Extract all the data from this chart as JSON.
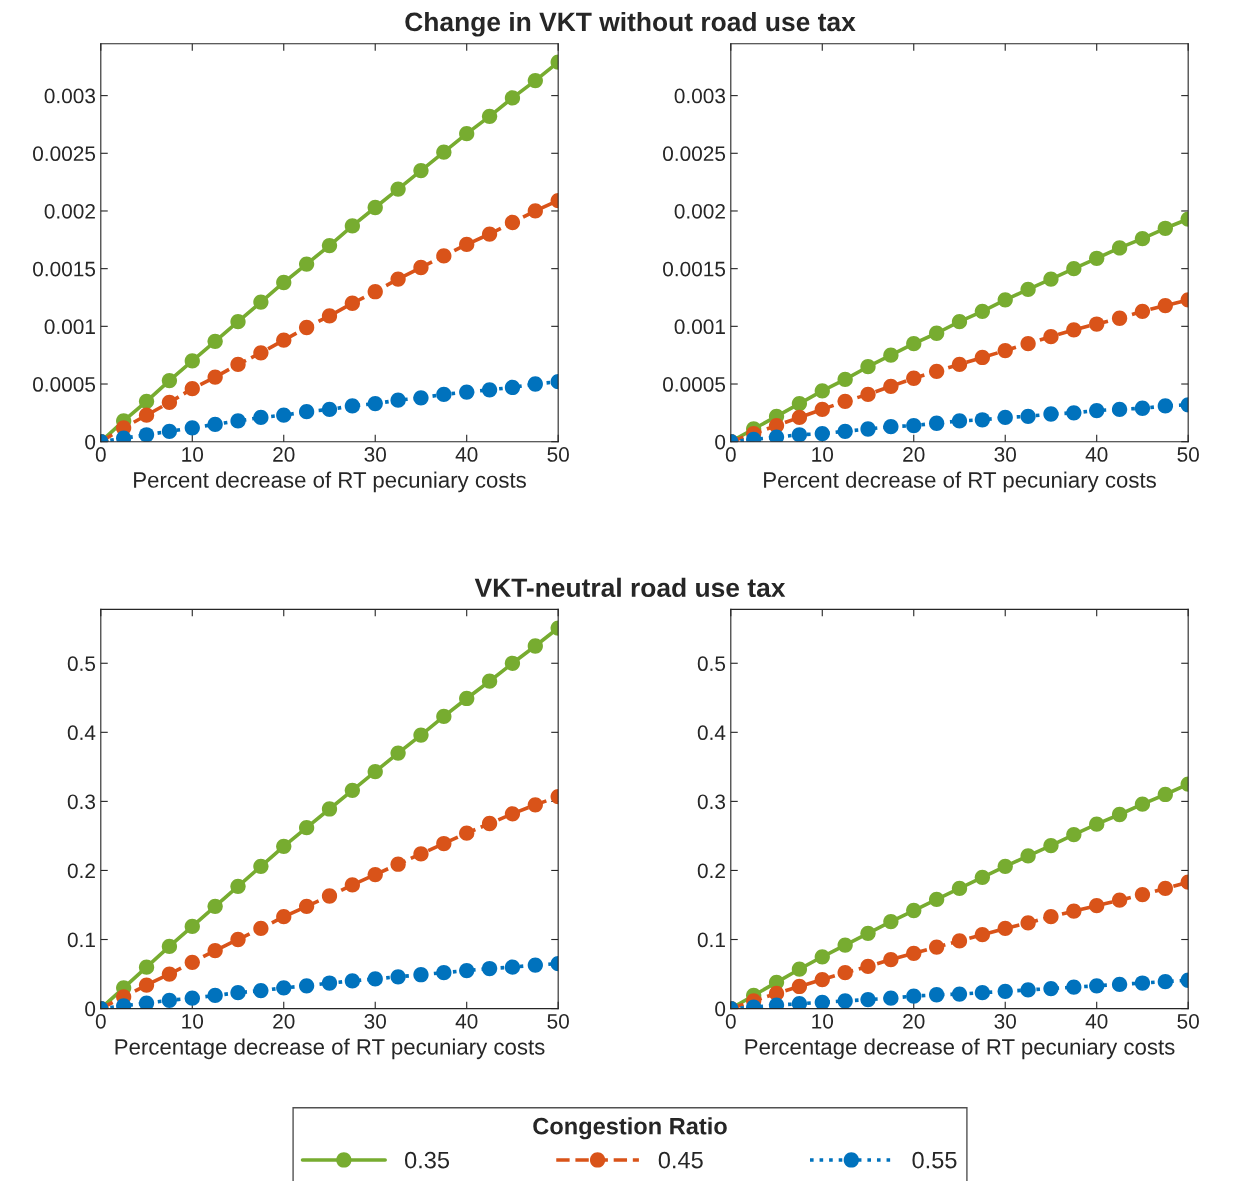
{
  "chart_data": [
    {
      "type": "line",
      "title": "Change in VKT without road use tax",
      "xlabel": "Percent decrease of RT pecuniary costs",
      "x": [
        0,
        2.5,
        5,
        7.5,
        10,
        12.5,
        15,
        17.5,
        20,
        22.5,
        25,
        27.5,
        30,
        32.5,
        35,
        37.5,
        40,
        42.5,
        45,
        47.5,
        50
      ],
      "xlim": [
        0,
        50
      ],
      "xticks": [
        0,
        10,
        20,
        30,
        40,
        50
      ],
      "ylim": [
        0,
        0.00345
      ],
      "yticks": [
        0,
        0.0005,
        0.001,
        0.0015,
        0.002,
        0.0025,
        0.003
      ],
      "grid": false,
      "marker": "circle",
      "legend": "bottom",
      "legend_title": "Congestion Ratio",
      "series": [
        {
          "name": "0.35",
          "color": "#77ac30",
          "line_style": "solid",
          "values": [
            0,
            0.00018,
            0.00035,
            0.00053,
            0.0007,
            0.00087,
            0.00104,
            0.00121,
            0.00138,
            0.00154,
            0.0017,
            0.00187,
            0.00203,
            0.00219,
            0.00235,
            0.00251,
            0.00267,
            0.00282,
            0.00298,
            0.00313,
            0.00329
          ]
        },
        {
          "name": "0.45",
          "color": "#d95319",
          "line_style": "dashed",
          "values": [
            0,
            0.00012,
            0.00023,
            0.00034,
            0.00046,
            0.00056,
            0.00067,
            0.00077,
            0.00088,
            0.00099,
            0.00109,
            0.0012,
            0.0013,
            0.00141,
            0.00151,
            0.00161,
            0.00171,
            0.0018,
            0.0019,
            0.002,
            0.00209
          ]
        },
        {
          "name": "0.55",
          "color": "#0072bd",
          "line_style": "dotted",
          "values": [
            0,
            3e-05,
            6e-05,
            9e-05,
            0.00012,
            0.00015,
            0.00018,
            0.00021,
            0.00023,
            0.00026,
            0.00028,
            0.00031,
            0.00033,
            0.00036,
            0.00038,
            0.00041,
            0.00043,
            0.00045,
            0.00047,
            0.0005,
            0.00052
          ]
        }
      ]
    },
    {
      "type": "line",
      "xlabel": "Percent decrease of RT pecuniary costs",
      "x": [
        0,
        2.5,
        5,
        7.5,
        10,
        12.5,
        15,
        17.5,
        20,
        22.5,
        25,
        27.5,
        30,
        32.5,
        35,
        37.5,
        40,
        42.5,
        45,
        47.5,
        50
      ],
      "xlim": [
        0,
        50
      ],
      "xticks": [
        0,
        10,
        20,
        30,
        40,
        50
      ],
      "ylim": [
        0,
        0.00345
      ],
      "yticks": [
        0,
        0.0005,
        0.001,
        0.0015,
        0.002,
        0.0025,
        0.003
      ],
      "grid": false,
      "marker": "circle",
      "series": [
        {
          "name": "0.35",
          "color": "#77ac30",
          "line_style": "solid",
          "values": [
            0,
            0.00011,
            0.00022,
            0.00033,
            0.00044,
            0.00054,
            0.00065,
            0.00075,
            0.00085,
            0.00094,
            0.00104,
            0.00113,
            0.00123,
            0.00132,
            0.00141,
            0.0015,
            0.00159,
            0.00168,
            0.00176,
            0.00185,
            0.00193
          ]
        },
        {
          "name": "0.45",
          "color": "#d95319",
          "line_style": "dashed",
          "values": [
            0,
            7e-05,
            0.00014,
            0.00021,
            0.00028,
            0.00035,
            0.00041,
            0.00048,
            0.00055,
            0.00061,
            0.00067,
            0.00073,
            0.00079,
            0.00085,
            0.00091,
            0.00097,
            0.00102,
            0.00107,
            0.00113,
            0.00118,
            0.00123
          ]
        },
        {
          "name": "0.55",
          "color": "#0072bd",
          "line_style": "dotted",
          "values": [
            0,
            2e-05,
            4e-05,
            6e-05,
            7e-05,
            9e-05,
            0.00011,
            0.00013,
            0.00014,
            0.00016,
            0.00018,
            0.00019,
            0.00021,
            0.00022,
            0.00024,
            0.00025,
            0.00027,
            0.00028,
            0.00029,
            0.00031,
            0.00032
          ]
        }
      ]
    },
    {
      "type": "line",
      "title": "VKT-neutral road use tax",
      "xlabel": "Percentage decrease of RT pecuniary costs",
      "x": [
        0,
        2.5,
        5,
        7.5,
        10,
        12.5,
        15,
        17.5,
        20,
        22.5,
        25,
        27.5,
        30,
        32.5,
        35,
        37.5,
        40,
        42.5,
        45,
        47.5,
        50
      ],
      "xlim": [
        0,
        50
      ],
      "xticks": [
        0,
        10,
        20,
        30,
        40,
        50
      ],
      "ylim": [
        0,
        0.578
      ],
      "yticks": [
        0,
        0.1,
        0.2,
        0.3,
        0.4,
        0.5
      ],
      "grid": false,
      "marker": "circle",
      "series": [
        {
          "name": "0.35",
          "color": "#77ac30",
          "line_style": "solid",
          "values": [
            0,
            0.03,
            0.06,
            0.09,
            0.119,
            0.148,
            0.177,
            0.206,
            0.235,
            0.262,
            0.289,
            0.316,
            0.343,
            0.37,
            0.396,
            0.423,
            0.449,
            0.474,
            0.5,
            0.525,
            0.551
          ]
        },
        {
          "name": "0.45",
          "color": "#d95319",
          "line_style": "dashed",
          "values": [
            0,
            0.017,
            0.034,
            0.05,
            0.067,
            0.084,
            0.1,
            0.116,
            0.133,
            0.148,
            0.163,
            0.179,
            0.194,
            0.209,
            0.224,
            0.239,
            0.254,
            0.268,
            0.282,
            0.295,
            0.307
          ]
        },
        {
          "name": "0.55",
          "color": "#0072bd",
          "line_style": "dotted",
          "values": [
            0,
            0.004,
            0.008,
            0.012,
            0.015,
            0.019,
            0.023,
            0.026,
            0.03,
            0.033,
            0.037,
            0.04,
            0.043,
            0.046,
            0.049,
            0.052,
            0.055,
            0.058,
            0.06,
            0.063,
            0.065
          ]
        }
      ]
    },
    {
      "type": "line",
      "xlabel": "Percentage decrease of RT pecuniary costs",
      "x": [
        0,
        2.5,
        5,
        7.5,
        10,
        12.5,
        15,
        17.5,
        20,
        22.5,
        25,
        27.5,
        30,
        32.5,
        35,
        37.5,
        40,
        42.5,
        45,
        47.5,
        50
      ],
      "xlim": [
        0,
        50
      ],
      "xticks": [
        0,
        10,
        20,
        30,
        40,
        50
      ],
      "ylim": [
        0,
        0.578
      ],
      "yticks": [
        0,
        0.1,
        0.2,
        0.3,
        0.4,
        0.5
      ],
      "grid": false,
      "marker": "circle",
      "series": [
        {
          "name": "0.35",
          "color": "#77ac30",
          "line_style": "solid",
          "values": [
            0,
            0.019,
            0.038,
            0.057,
            0.075,
            0.092,
            0.109,
            0.126,
            0.142,
            0.158,
            0.174,
            0.19,
            0.206,
            0.221,
            0.236,
            0.252,
            0.267,
            0.281,
            0.296,
            0.31,
            0.325
          ]
        },
        {
          "name": "0.45",
          "color": "#d95319",
          "line_style": "dashed",
          "values": [
            0,
            0.011,
            0.022,
            0.032,
            0.042,
            0.052,
            0.061,
            0.071,
            0.08,
            0.089,
            0.098,
            0.107,
            0.116,
            0.124,
            0.133,
            0.141,
            0.149,
            0.157,
            0.165,
            0.174,
            0.183
          ]
        },
        {
          "name": "0.55",
          "color": "#0072bd",
          "line_style": "dotted",
          "values": [
            0,
            0.002,
            0.005,
            0.007,
            0.009,
            0.011,
            0.013,
            0.015,
            0.018,
            0.02,
            0.021,
            0.023,
            0.025,
            0.027,
            0.029,
            0.031,
            0.033,
            0.035,
            0.037,
            0.039,
            0.041
          ]
        }
      ]
    }
  ]
}
